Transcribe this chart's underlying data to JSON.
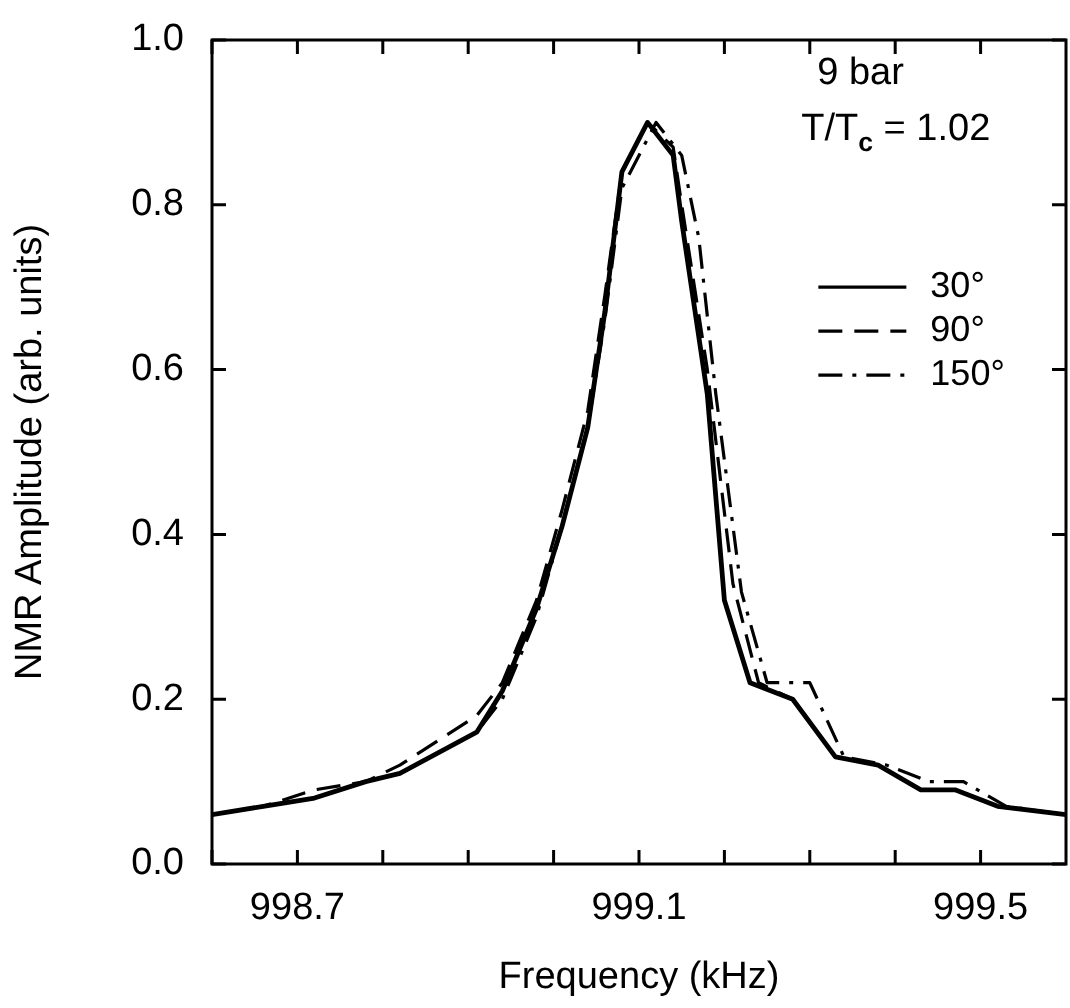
{
  "chart_data": {
    "type": "line",
    "xlabel": "Frequency (kHz)",
    "ylabel": "NMR Amplitude (arb. units)",
    "annotations": [
      "9 bar",
      "T/T$_{c}$ = 1.02"
    ],
    "xlim": [
      998.6,
      999.6
    ],
    "ylim": [
      0,
      1
    ],
    "xticks": [
      {
        "value": 998.6,
        "label": null
      },
      {
        "value": 998.7,
        "label": "998.7"
      },
      {
        "value": 998.8,
        "label": null
      },
      {
        "value": 998.9,
        "label": null
      },
      {
        "value": 999.0,
        "label": null
      },
      {
        "value": 999.1,
        "label": "999.1"
      },
      {
        "value": 999.2,
        "label": null
      },
      {
        "value": 999.3,
        "label": null
      },
      {
        "value": 999.4,
        "label": null
      },
      {
        "value": 999.5,
        "label": "999.5"
      }
    ],
    "yticks": [
      {
        "value": 0,
        "label": "0.0"
      },
      {
        "value": 0.2,
        "label": "0.2"
      },
      {
        "value": 0.4,
        "label": "0.4"
      },
      {
        "value": 0.6,
        "label": "0.6"
      },
      {
        "value": 0.8,
        "label": "0.8"
      },
      {
        "value": 1,
        "label": "1.0"
      }
    ],
    "grid": false,
    "legend": "right",
    "marker": "none",
    "series": [
      {
        "name": "30°",
        "color": "#000000",
        "line_style": "solid",
        "x": [
          998.6,
          998.66,
          998.72,
          998.78,
          998.82,
          998.91,
          998.94,
          998.98,
          999.01,
          999.04,
          999.06,
          999.08,
          999.11,
          999.14,
          999.15,
          999.18,
          999.2,
          999.23,
          999.28,
          999.33,
          999.38,
          999.43,
          999.47,
          999.52,
          999.6
        ],
        "values": [
          0.06,
          0.07,
          0.08,
          0.1,
          0.11,
          0.16,
          0.21,
          0.31,
          0.41,
          0.53,
          0.67,
          0.84,
          0.9,
          0.86,
          0.78,
          0.57,
          0.32,
          0.22,
          0.2,
          0.13,
          0.12,
          0.09,
          0.09,
          0.07,
          0.06
        ]
      },
      {
        "name": "90°",
        "color": "#000000",
        "line_style": "dashed",
        "x": [
          998.6,
          998.66,
          998.72,
          998.78,
          998.82,
          998.91,
          998.94,
          998.98,
          999.01,
          999.04,
          999.06,
          999.08,
          999.11,
          999.14,
          999.15,
          999.18,
          999.21,
          999.24,
          999.28,
          999.33,
          999.38,
          999.43,
          999.47,
          999.52,
          999.6
        ],
        "values": [
          0.06,
          0.07,
          0.09,
          0.1,
          0.12,
          0.18,
          0.22,
          0.32,
          0.43,
          0.55,
          0.69,
          0.84,
          0.9,
          0.87,
          0.8,
          0.6,
          0.34,
          0.22,
          0.2,
          0.13,
          0.12,
          0.09,
          0.09,
          0.07,
          0.06
        ]
      },
      {
        "name": "150°",
        "color": "#000000",
        "line_style": "dashdot",
        "x": [
          998.6,
          998.66,
          998.72,
          998.78,
          998.82,
          998.91,
          998.94,
          998.98,
          999.01,
          999.04,
          999.06,
          999.08,
          999.12,
          999.15,
          999.17,
          999.19,
          999.22,
          999.25,
          999.3,
          999.34,
          999.39,
          999.44,
          999.48,
          999.53,
          999.6
        ],
        "values": [
          0.06,
          0.07,
          0.08,
          0.1,
          0.11,
          0.16,
          0.2,
          0.3,
          0.41,
          0.53,
          0.66,
          0.82,
          0.9,
          0.86,
          0.76,
          0.57,
          0.33,
          0.22,
          0.22,
          0.13,
          0.12,
          0.1,
          0.1,
          0.07,
          0.06
        ]
      }
    ]
  }
}
